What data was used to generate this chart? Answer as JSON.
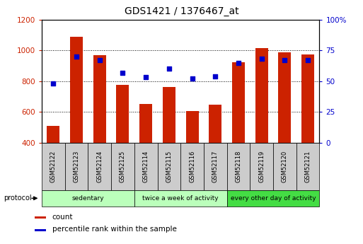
{
  "title": "GDS1421 / 1376467_at",
  "samples": [
    "GSM52122",
    "GSM52123",
    "GSM52124",
    "GSM52125",
    "GSM52114",
    "GSM52115",
    "GSM52116",
    "GSM52117",
    "GSM52118",
    "GSM52119",
    "GSM52120",
    "GSM52121"
  ],
  "counts": [
    510,
    1090,
    970,
    778,
    652,
    760,
    608,
    648,
    924,
    1015,
    988,
    975
  ],
  "percentiles": [
    48,
    70,
    67,
    57,
    53,
    60,
    52,
    54,
    65,
    68,
    67,
    67
  ],
  "ylim_left": [
    400,
    1200
  ],
  "ylim_right": [
    0,
    100
  ],
  "yticks_left": [
    400,
    600,
    800,
    1000,
    1200
  ],
  "yticks_right": [
    0,
    25,
    50,
    75,
    100
  ],
  "bar_color": "#cc2200",
  "dot_color": "#0000cc",
  "bar_bottom": 400,
  "groups": [
    {
      "label": "sedentary",
      "indices": [
        0,
        1,
        2,
        3
      ],
      "color": "#bbffbb"
    },
    {
      "label": "twice a week of activity",
      "indices": [
        4,
        5,
        6,
        7
      ],
      "color": "#bbffbb"
    },
    {
      "label": "every other day of activity",
      "indices": [
        8,
        9,
        10,
        11
      ],
      "color": "#44dd44"
    }
  ],
  "legend_count_label": "count",
  "legend_pct_label": "percentile rank within the sample",
  "tick_color_left": "#cc2200",
  "tick_color_right": "#0000cc",
  "grid_color": "#000000",
  "sample_box_color": "#cccccc",
  "fig_bg": "#ffffff"
}
